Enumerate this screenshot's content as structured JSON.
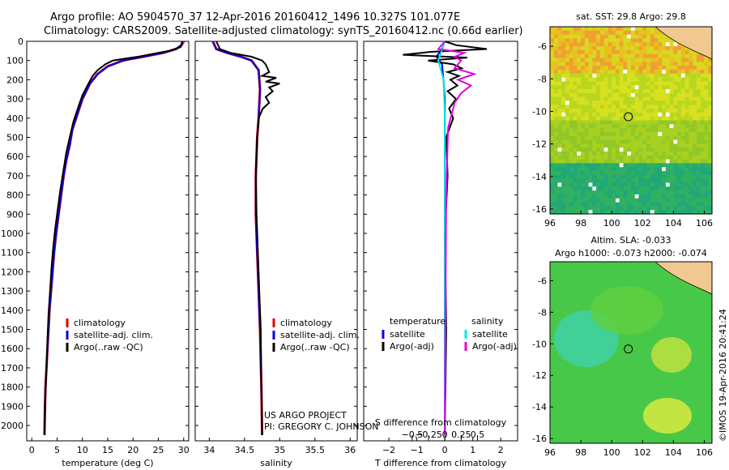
{
  "header": {
    "line1": "Argo profile: AO 5904570_37 12-Apr-2016 20160412_1496 10.327S 101.077E",
    "line2": "Climatology: CARS2009. Satellite-adjusted climatology: synTS_20160412.nc (0.66d earlier)"
  },
  "colors": {
    "clim": "#e00000",
    "sat": "#0000e8",
    "argo": "#000000",
    "sat_s": "#00e8e8",
    "argo_s": "#e000e0"
  },
  "chart_data": [
    {
      "type": "line",
      "title": "temperature profile",
      "xlabel": "temperature (deg C)",
      "ylabel": "",
      "xlim": [
        -1,
        31
      ],
      "ylim": [
        2080,
        0
      ],
      "xticks": [
        0,
        5,
        10,
        15,
        20,
        25,
        30
      ],
      "xtick_labels": [
        "0",
        "5",
        "10",
        "15",
        "20",
        "25",
        "30"
      ],
      "yticks": [
        0,
        100,
        200,
        300,
        400,
        500,
        600,
        700,
        800,
        900,
        1000,
        1100,
        1200,
        1300,
        1400,
        1500,
        1600,
        1700,
        1800,
        1900,
        2000
      ],
      "ytick_labels": [
        "0",
        "100",
        "200",
        "300",
        "400",
        "500",
        "600",
        "700",
        "800",
        "900",
        "1000",
        "1100",
        "1200",
        "1300",
        "1400",
        "1500",
        "1600",
        "1700",
        "1800",
        "1900",
        "2000"
      ],
      "legend": [
        "climatology",
        "satellite-adj. clim.",
        "Argo(..raw -QC)"
      ],
      "series": [
        {
          "name": "climatology",
          "color": "#e00000",
          "x": [
            30,
            29.6,
            28.5,
            26,
            22,
            18,
            15,
            13,
            11.5,
            10,
            9,
            8,
            7.5,
            6.8,
            6.3,
            5.8,
            5.3,
            4.8,
            4.4,
            4.1,
            3.8,
            3.5,
            3.3,
            3.1,
            2.9,
            2.7,
            2.6,
            2.5
          ],
          "y": [
            0,
            20,
            40,
            60,
            80,
            100,
            130,
            170,
            220,
            300,
            380,
            460,
            540,
            620,
            700,
            800,
            900,
            1000,
            1100,
            1200,
            1300,
            1400,
            1500,
            1600,
            1700,
            1800,
            1900,
            2050
          ]
        },
        {
          "name": "satellite-adj. clim.",
          "color": "#0000e8",
          "x": [
            29.8,
            29.5,
            28.5,
            26,
            22,
            18,
            15,
            13,
            11.5,
            10,
            9,
            8,
            7.5,
            6.8,
            6.3,
            5.8,
            5.3,
            4.8,
            4.4,
            4.1,
            3.8,
            3.5,
            3.3,
            3.1,
            2.9,
            2.7,
            2.6,
            2.5
          ],
          "y": [
            0,
            20,
            40,
            60,
            80,
            100,
            130,
            170,
            220,
            300,
            380,
            460,
            540,
            620,
            700,
            800,
            900,
            1000,
            1100,
            1200,
            1300,
            1400,
            1500,
            1600,
            1700,
            1800,
            1900,
            2050
          ]
        },
        {
          "name": "Argo(..raw -QC)",
          "color": "#000000",
          "x": [
            29.7,
            29.4,
            27,
            25,
            23,
            21,
            18.5,
            16,
            14.5,
            13,
            12,
            11,
            10,
            9.2,
            8.2,
            7.5,
            6.8,
            6.2,
            5.6,
            5.1,
            4.6,
            4.2,
            3.9,
            3.6,
            3.3,
            3.1,
            2.9,
            2.7,
            2.6,
            2.5
          ],
          "y": [
            0,
            30,
            50,
            60,
            70,
            80,
            90,
            100,
            120,
            150,
            180,
            230,
            280,
            340,
            420,
            500,
            580,
            680,
            780,
            880,
            980,
            1080,
            1180,
            1300,
            1420,
            1550,
            1700,
            1850,
            1950,
            2050
          ]
        }
      ]
    },
    {
      "type": "line",
      "title": "salinity profile",
      "xlabel": "salinity",
      "ylabel": "",
      "xlim": [
        33.8,
        36.1
      ],
      "ylim": [
        2080,
        0
      ],
      "xticks": [
        34,
        34.5,
        35,
        35.5,
        36
      ],
      "xtick_labels": [
        "34",
        "34.5",
        "35",
        "35.5",
        "36"
      ],
      "legend": [
        "climatology",
        "satellite-adj. clim.",
        "Argo(..raw -QC)"
      ],
      "series": [
        {
          "name": "climatology",
          "color": "#e00000",
          "x": [
            34.05,
            34.1,
            34.25,
            34.45,
            34.6,
            34.7,
            34.72,
            34.7,
            34.68,
            34.66,
            34.66,
            34.68,
            34.7,
            34.72,
            34.74,
            34.75
          ],
          "y": [
            0,
            40,
            60,
            80,
            100,
            150,
            250,
            400,
            500,
            700,
            900,
            1100,
            1300,
            1500,
            1800,
            2050
          ]
        },
        {
          "name": "satellite-adj. clim.",
          "color": "#0000e8",
          "x": [
            34.05,
            34.1,
            34.25,
            34.45,
            34.6,
            34.7,
            34.72,
            34.7,
            34.68,
            34.66,
            34.66,
            34.68,
            34.7,
            34.72,
            34.74,
            34.75
          ],
          "y": [
            0,
            40,
            60,
            80,
            100,
            150,
            250,
            400,
            500,
            700,
            900,
            1100,
            1300,
            1500,
            1800,
            2050
          ]
        },
        {
          "name": "Argo(..raw -QC)",
          "color": "#000000",
          "x": [
            34.1,
            34.15,
            34.3,
            34.6,
            34.75,
            34.8,
            34.85,
            34.75,
            34.95,
            34.8,
            35.0,
            34.85,
            34.9,
            34.8,
            34.85,
            34.76,
            34.7,
            34.68,
            34.66,
            34.67,
            34.69,
            34.71,
            34.73,
            34.74,
            34.75
          ],
          "y": [
            0,
            40,
            60,
            80,
            100,
            120,
            160,
            180,
            190,
            210,
            220,
            240,
            260,
            290,
            320,
            350,
            400,
            500,
            700,
            900,
            1100,
            1300,
            1500,
            1800,
            2050
          ]
        }
      ]
    },
    {
      "type": "line",
      "title": "difference from climatology",
      "xlabel": "T difference from climatology",
      "xlabel2": "S difference from climatology",
      "xlim": [
        -2.9,
        2.6
      ],
      "ylim": [
        2080,
        0
      ],
      "xticks": [
        -2,
        -1,
        0,
        1,
        2
      ],
      "xtick_labels": [
        "−2",
        "−1",
        "0",
        "1",
        "2"
      ],
      "s_ticks": [
        -0.5,
        -0.25,
        0,
        0.25,
        0.5
      ],
      "s_tick_labels": [
        "−0.5",
        "−0.25",
        "0",
        "0.25",
        "0.5"
      ],
      "legend_heads": [
        "temperature",
        "salinity"
      ],
      "legend": [
        "satellite",
        "Argo(-adj)",
        "satellite",
        "Argo(-adj)"
      ],
      "series": [
        {
          "name": "T satellite",
          "color": "#0000e8",
          "x": [
            0,
            -0.1,
            -0.3,
            -0.1,
            -0.05,
            0,
            0,
            0,
            0,
            0
          ],
          "y": [
            0,
            40,
            80,
            120,
            200,
            300,
            600,
            1000,
            1500,
            2050
          ]
        },
        {
          "name": "T Argo(-adj)",
          "color": "#000000",
          "x": [
            0,
            0.4,
            1.5,
            -0.5,
            -1.5,
            0.8,
            -0.6,
            0.3,
            0.6,
            0.1,
            0.5,
            0.2,
            0.45,
            0.1,
            0.4,
            0.15,
            0.3,
            0.05,
            0.1,
            0,
            0.05,
            0
          ],
          "y": [
            0,
            20,
            40,
            55,
            70,
            85,
            100,
            120,
            140,
            160,
            180,
            200,
            230,
            260,
            300,
            350,
            400,
            500,
            700,
            1000,
            1500,
            2050
          ]
        },
        {
          "name": "S satellite",
          "color": "#00e8e8",
          "x": [
            0,
            -0.05,
            -0.1,
            -0.02,
            0,
            0,
            0
          ],
          "y": [
            0,
            50,
            100,
            200,
            400,
            1000,
            2050
          ]
        },
        {
          "name": "S Argo(-adj)",
          "color": "#e000e0",
          "x": [
            0,
            -0.1,
            0.3,
            0.15,
            0.25,
            0.15,
            0.45,
            0.2,
            0.4,
            0.25,
            0.15,
            0.05,
            0.02,
            0
          ],
          "y": [
            0,
            40,
            60,
            80,
            100,
            140,
            170,
            200,
            230,
            270,
            320,
            450,
            800,
            2050
          ]
        }
      ]
    },
    {
      "type": "heatmap",
      "title": "sat. SST: 29.8  Argo: 29.8",
      "xlim": [
        96,
        106.5
      ],
      "ylim": [
        -16.3,
        -4.8
      ],
      "xticks": [
        96,
        98,
        100,
        102,
        104,
        106
      ],
      "xtick_labels": [
        "96",
        "98",
        "100",
        "102",
        "104",
        "106"
      ],
      "yticks": [
        -6,
        -8,
        -10,
        -12,
        -14,
        -16
      ],
      "ytick_labels": [
        "-6",
        "-8",
        "-10",
        "-12",
        "-14",
        "-16"
      ],
      "marker": {
        "lon": 101.077,
        "lat": -10.327
      }
    },
    {
      "type": "heatmap",
      "title": "Altim. SLA: -0.033",
      "subtitle": "Argo h1000: -0.073  h2000: -0.074",
      "xlim": [
        96,
        106.5
      ],
      "ylim": [
        -16.3,
        -4.8
      ],
      "xticks": [
        96,
        98,
        100,
        102,
        104,
        106
      ],
      "xtick_labels": [
        "96",
        "98",
        "100",
        "102",
        "104",
        "106"
      ],
      "yticks": [
        -6,
        -8,
        -10,
        -12,
        -14,
        -16
      ],
      "ytick_labels": [
        "-6",
        "-8",
        "-10",
        "-12",
        "-14",
        "-16"
      ],
      "marker": {
        "lon": 101.077,
        "lat": -10.327
      }
    }
  ],
  "credit": {
    "line1": "US ARGO PROJECT",
    "line2": "PI: GREGORY C. JOHNSON"
  },
  "side_label": "©IMOS 19-Apr-2016 20:41:24"
}
